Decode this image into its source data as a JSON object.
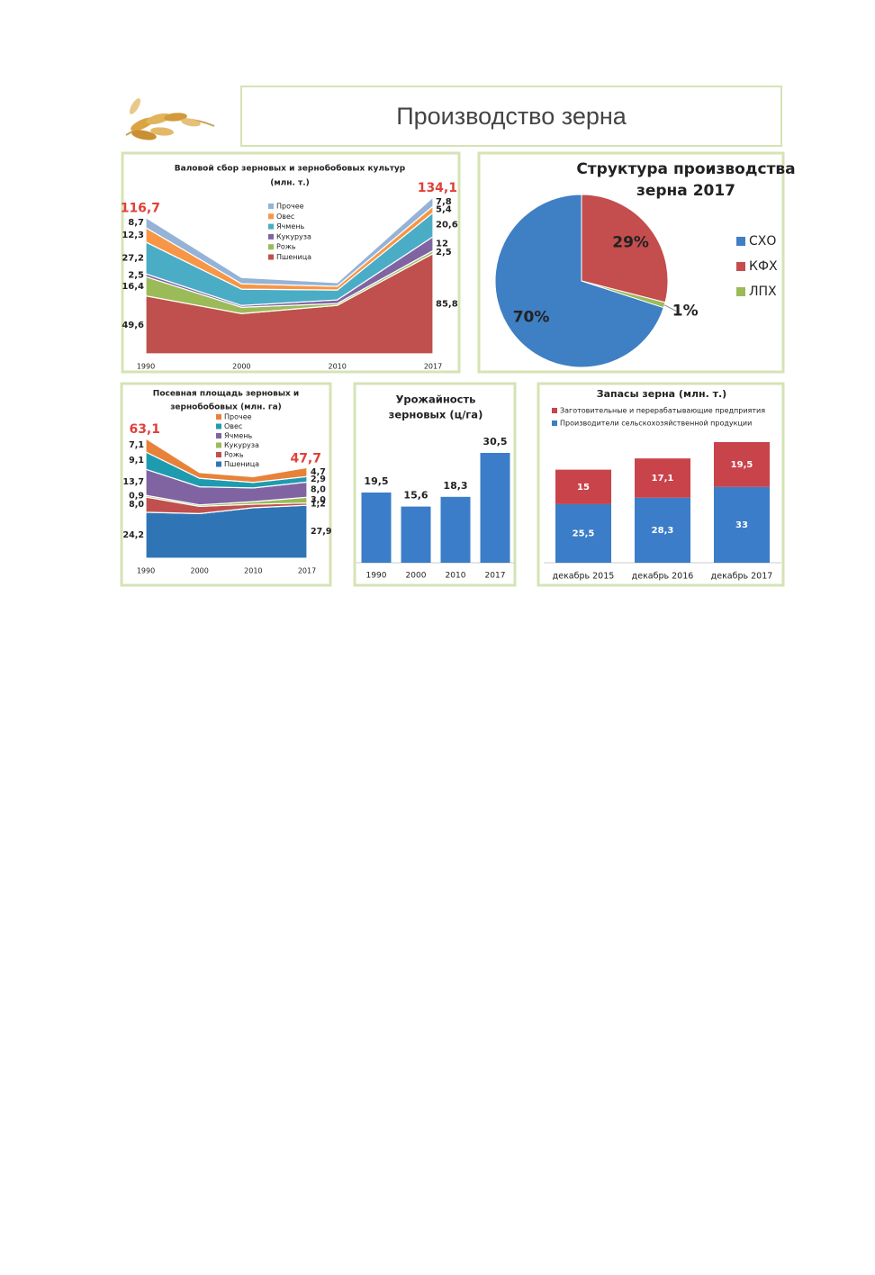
{
  "header": {
    "title": "Производство зерна"
  },
  "chart_data": [
    {
      "type": "area",
      "stacked": true,
      "title": [
        "Валовой сбор зерновых и зернобобовых культур",
        "(млн. т.)"
      ],
      "categories": [
        "1990",
        "2000",
        "2010",
        "2017"
      ],
      "series": [
        {
          "name": "Пшеница",
          "color": "#c0504d",
          "values": [
            49.6,
            34.5,
            41.5,
            85.8
          ],
          "value_labels": [
            "49,6",
            null,
            null,
            "85,8"
          ]
        },
        {
          "name": "Рожь",
          "color": "#9bbb59",
          "values": [
            16.4,
            5.4,
            1.6,
            2.5
          ],
          "value_labels": [
            "16,4",
            null,
            null,
            "2,5"
          ]
        },
        {
          "name": "Кукуруза",
          "color": "#8064a2",
          "values": [
            2.5,
            1.5,
            3.1,
            12
          ],
          "value_labels": [
            "2,5",
            null,
            null,
            "12"
          ]
        },
        {
          "name": "Ячмень",
          "color": "#4bacc6",
          "values": [
            27.2,
            14,
            8.4,
            20.6
          ],
          "value_labels": [
            "27,2",
            null,
            null,
            "20,6"
          ]
        },
        {
          "name": "Овес",
          "color": "#f79646",
          "values": [
            12.3,
            4.6,
            3.2,
            5.4
          ],
          "value_labels": [
            "12,3",
            null,
            null,
            "5,4"
          ]
        },
        {
          "name": "Прочее",
          "color": "#95b3d7",
          "values": [
            8.7,
            5.4,
            3.2,
            7.8
          ],
          "value_labels": [
            "8,7",
            null,
            null,
            "7,8"
          ]
        }
      ],
      "totals": [
        116.7,
        null,
        null,
        134.1
      ],
      "total_labels": [
        "116,7",
        null,
        null,
        "134,1"
      ],
      "total_color": "#e0413a"
    },
    {
      "type": "pie",
      "title": [
        "Структура производства",
        "зерна 2017"
      ],
      "categories": [
        "СХО",
        "КФХ",
        "ЛПХ"
      ],
      "values": [
        70,
        29,
        1
      ],
      "value_labels": [
        "70%",
        "29%",
        "1%"
      ],
      "colors": [
        "#3f7fc4",
        "#c44d4d",
        "#9bbb59"
      ]
    },
    {
      "type": "area",
      "stacked": true,
      "title": [
        "Посевная площадь зерновых и",
        "зернобобовых (млн. га)"
      ],
      "categories": [
        "1990",
        "2000",
        "2010",
        "2017"
      ],
      "series": [
        {
          "name": "Пшеница",
          "color": "#2f75b5",
          "values": [
            24.2,
            23.5,
            26.6,
            27.9
          ],
          "value_labels": [
            "24,2",
            null,
            null,
            "27,9"
          ]
        },
        {
          "name": "Рожь",
          "color": "#c0504d",
          "values": [
            8.0,
            3.8,
            1.8,
            1.2
          ],
          "value_labels": [
            "8,0",
            null,
            null,
            "1,2"
          ]
        },
        {
          "name": "Кукуруза",
          "color": "#9bbb59",
          "values": [
            0.9,
            0.8,
            1.4,
            3.0
          ],
          "value_labels": [
            "0,9",
            null,
            null,
            "3,0"
          ]
        },
        {
          "name": "Ячмень",
          "color": "#8064a2",
          "values": [
            13.7,
            9.5,
            7.2,
            8.0
          ],
          "value_labels": [
            "13,7",
            null,
            null,
            "8,0"
          ]
        },
        {
          "name": "Овес",
          "color": "#1f9bb0",
          "values": [
            9.1,
            4.5,
            2.9,
            2.9
          ],
          "value_labels": [
            "9,1",
            null,
            null,
            "2,9"
          ]
        },
        {
          "name": "Прочее",
          "color": "#e8823a",
          "values": [
            7.1,
            3.0,
            3.0,
            4.7
          ],
          "value_labels": [
            "7,1",
            null,
            null,
            "4,7"
          ]
        }
      ],
      "totals": [
        63.1,
        null,
        null,
        47.7
      ],
      "total_labels": [
        "63,1",
        null,
        null,
        "47,7"
      ],
      "total_color": "#e0413a"
    },
    {
      "type": "bar",
      "title": [
        "Урожайность",
        "зерновых (ц/га)"
      ],
      "categories": [
        "1990",
        "2000",
        "2010",
        "2017"
      ],
      "values": [
        19.5,
        15.6,
        18.3,
        30.5
      ],
      "value_labels": [
        "19,5",
        "15,6",
        "18,3",
        "30,5"
      ],
      "color": "#3b7dc8"
    },
    {
      "type": "stacked_bar",
      "title": [
        "Запасы зерна (млн. т.)"
      ],
      "categories": [
        "декабрь 2015",
        "декабрь 2016",
        "декабрь 2017"
      ],
      "series": [
        {
          "name": "Производители сельскохозяйственной продукции",
          "color": "#3b7dc8",
          "values": [
            25.5,
            28.3,
            33
          ],
          "value_labels": [
            "25,5",
            "28,3",
            "33"
          ]
        },
        {
          "name": "Заготовительные и перерабатывающие предприятия",
          "color": "#c9434b",
          "values": [
            15,
            17.1,
            19.5
          ],
          "value_labels": [
            "15",
            "17,1",
            "19,5"
          ]
        }
      ]
    }
  ]
}
